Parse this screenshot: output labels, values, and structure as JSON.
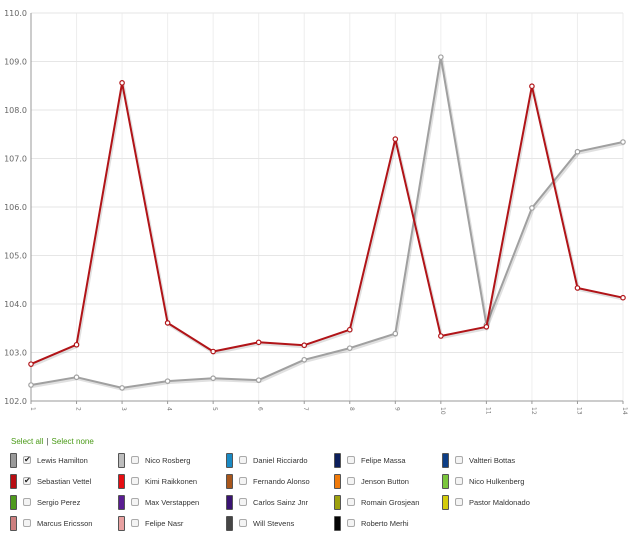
{
  "chart_data": {
    "type": "line",
    "x": [
      1,
      2,
      3,
      4,
      5,
      6,
      7,
      8,
      9,
      10,
      11,
      12,
      13,
      14
    ],
    "ylim": [
      102.0,
      110.0
    ],
    "yticks": [
      "102.0",
      "103.0",
      "104.0",
      "105.0",
      "106.0",
      "107.0",
      "108.0",
      "109.0",
      "110.0"
    ],
    "xticks": [
      "1",
      "2",
      "3",
      "4",
      "5",
      "6",
      "7",
      "8",
      "9",
      "10",
      "11",
      "12",
      "13",
      "14"
    ],
    "grid": true,
    "series": [
      {
        "name": "Lewis Hamilton",
        "color": "#a0a0a0",
        "values": [
          102.33,
          102.49,
          102.27,
          102.41,
          102.47,
          102.43,
          102.85,
          103.09,
          103.39,
          109.09,
          103.57,
          105.98,
          107.14,
          107.34
        ]
      },
      {
        "name": "Sebastian Vettel",
        "color": "#b11418",
        "values": [
          102.76,
          103.16,
          108.56,
          103.61,
          103.02,
          103.21,
          103.15,
          103.47,
          107.4,
          103.34,
          103.53,
          108.49,
          104.33,
          104.13
        ]
      }
    ]
  },
  "controls": {
    "select_all": "Select all",
    "separator": "|",
    "select_none": "Select none"
  },
  "drivers": [
    {
      "name": "Lewis Hamilton",
      "color": "#9a9a9a",
      "checked": true
    },
    {
      "name": "Nico Rosberg",
      "color": "#bdbdbd",
      "checked": false
    },
    {
      "name": "Daniel Ricciardo",
      "color": "#1a8ac4",
      "checked": false
    },
    {
      "name": "Felipe Massa",
      "color": "#0d1f5c",
      "checked": false
    },
    {
      "name": "Valtteri Bottas",
      "color": "#0d3e86",
      "checked": false
    },
    {
      "name": "Sebastian Vettel",
      "color": "#b80d12",
      "checked": true
    },
    {
      "name": "Kimi Raikkonen",
      "color": "#e60d12",
      "checked": false
    },
    {
      "name": "Fernando Alonso",
      "color": "#a8561b",
      "checked": false
    },
    {
      "name": "Jenson Button",
      "color": "#f07a0a",
      "checked": false
    },
    {
      "name": "Nico Hulkenberg",
      "color": "#7bc63c",
      "checked": false
    },
    {
      "name": "Sergio Perez",
      "color": "#4e9a1d",
      "checked": false
    },
    {
      "name": "Max Verstappen",
      "color": "#5a1d92",
      "checked": false
    },
    {
      "name": "Carlos Sainz Jnr",
      "color": "#3a1372",
      "checked": false
    },
    {
      "name": "Romain Grosjean",
      "color": "#9ea10e",
      "checked": false
    },
    {
      "name": "Pastor Maldonado",
      "color": "#d4cc0b",
      "checked": false
    },
    {
      "name": "Marcus Ericsson",
      "color": "#cd7f7f",
      "checked": false
    },
    {
      "name": "Felipe Nasr",
      "color": "#e8a1a1",
      "checked": false
    },
    {
      "name": "Will Stevens",
      "color": "#454545",
      "checked": false
    },
    {
      "name": "Roberto Merhi",
      "color": "#050505",
      "checked": false
    }
  ]
}
